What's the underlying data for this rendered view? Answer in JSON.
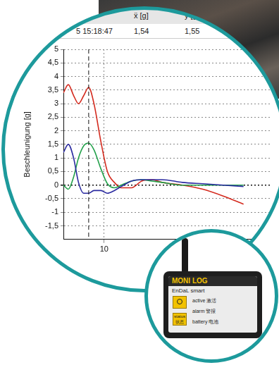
{
  "chart_data": {
    "type": "line",
    "y_label": "Beschleunigung [g]",
    "x": [
      9.0,
      9.12,
      9.25,
      9.37,
      9.5,
      9.62,
      9.75,
      9.92,
      10.08,
      10.25,
      10.42,
      10.67,
      10.92,
      11.17,
      11.42,
      11.92,
      12.42,
      12.92,
      13.42
    ],
    "series": [
      {
        "color": "#2a2aa0",
        "values": [
          1.2,
          1.5,
          1.0,
          0.1,
          -0.3,
          -0.3,
          -0.2,
          -0.2,
          -0.3,
          -0.2,
          -0.05,
          0.15,
          0.2,
          0.2,
          0.2,
          0.1,
          0.05,
          0.0,
          -0.05
        ]
      },
      {
        "color": "#22a04a",
        "values": [
          0.0,
          -0.15,
          0.3,
          1.0,
          1.45,
          1.55,
          1.3,
          0.6,
          0.05,
          -0.1,
          0.0,
          0.15,
          0.2,
          0.15,
          0.1,
          0.0,
          0.0,
          0.0,
          0.0
        ]
      },
      {
        "color": "#d42a1e",
        "values": [
          3.4,
          3.7,
          3.3,
          3.0,
          3.3,
          3.6,
          3.0,
          1.6,
          0.5,
          0.1,
          -0.1,
          -0.1,
          0.15,
          0.2,
          0.1,
          0.0,
          -0.15,
          -0.4,
          -0.7
        ]
      }
    ],
    "xlim": [
      9,
      14.1
    ],
    "xticks": [
      10
    ],
    "ylim": [
      -2,
      5
    ],
    "yticks": [
      5,
      {
        "value": 4.5,
        "label": "4,5"
      },
      4,
      {
        "value": 3.5,
        "label": "3,5"
      },
      3,
      {
        "value": 2.5,
        "label": "2,5"
      },
      2,
      {
        "value": 1.5,
        "label": "1,5"
      },
      1,
      {
        "value": 0.5,
        "label": "0,5"
      },
      0,
      {
        "value": -0.5,
        "label": "-0,5"
      },
      -1,
      {
        "value": -1.5,
        "label": "-1,5"
      }
    ],
    "grid": true,
    "cursor": 9.62
  },
  "table": {
    "header": [
      "ẍ [g]",
      "ÿ [g]"
    ],
    "row": [
      "5 15:18:47",
      "1,54",
      "1,55"
    ]
  },
  "device": {
    "brand": "MONI LOG",
    "model": "EnDaL smart",
    "indicators": [
      {
        "label": "active",
        "label_cn": "激活"
      },
      {
        "label": "alarm",
        "label_cn": "警报"
      },
      {
        "label": "battery",
        "label_cn": "电池"
      }
    ],
    "button": {
      "label": "status",
      "label_cn": "状态"
    }
  }
}
